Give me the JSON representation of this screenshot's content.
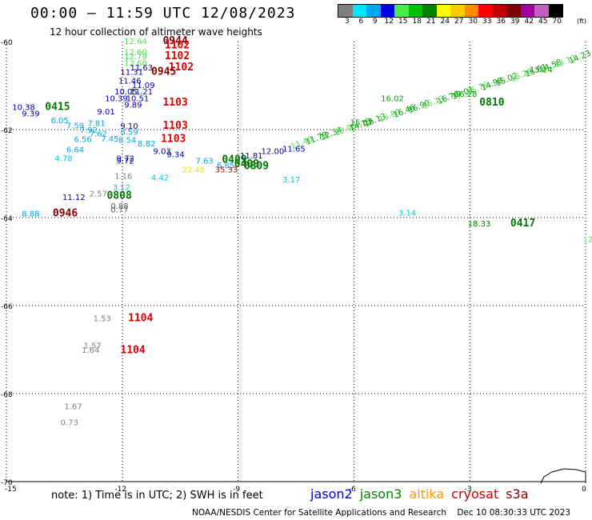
{
  "title": "00:00 — 11:59 UTC 12/08/2023",
  "subtitle": "12 hour collection of altimeter wave heights",
  "color_scale": {
    "unit": "(ft)",
    "swatches": [
      "#808080",
      "#00e5ff",
      "#00a8f0",
      "#0000dd",
      "#44ee44",
      "#00c000",
      "#008000",
      "#ffff00",
      "#ffcc00",
      "#ff8c00",
      "#ff0000",
      "#c00000",
      "#800000",
      "#a000a0",
      "#c060c0",
      "#000000"
    ],
    "labels": [
      "3",
      "6",
      "9",
      "12",
      "15",
      "18",
      "21",
      "24",
      "27",
      "30",
      "33",
      "36",
      "39",
      "42",
      "45",
      "70"
    ]
  },
  "axes": {
    "x_ticks": [
      "-15",
      "-12",
      "-9",
      "-6",
      "-3",
      "0"
    ],
    "y_ticks": [
      "-60",
      "-62",
      "-64",
      "-66",
      "-68",
      "-70"
    ]
  },
  "observations": [
    {
      "t": "12.64",
      "lon": -11.95,
      "lat": -60.05,
      "c": "#55dd55"
    },
    {
      "t": "0944",
      "lon": -10.95,
      "lat": -60.05,
      "c": "#880000",
      "time": true
    },
    {
      "t": "1102",
      "lon": -10.9,
      "lat": -60.15,
      "c": "#dd0000",
      "time": true
    },
    {
      "t": "12.60",
      "lon": -11.95,
      "lat": -60.3,
      "c": "#55dd55"
    },
    {
      "t": "12.79",
      "lon": -11.95,
      "lat": -60.4,
      "c": "#55dd55"
    },
    {
      "t": "1102",
      "lon": -10.9,
      "lat": -60.4,
      "c": "#dd0000",
      "time": true
    },
    {
      "t": "12.60",
      "lon": -11.95,
      "lat": -60.55,
      "c": "#55dd55"
    },
    {
      "t": "11.63",
      "lon": -11.8,
      "lat": -60.65,
      "c": "#0000aa"
    },
    {
      "t": "1102",
      "lon": -10.8,
      "lat": -60.65,
      "c": "#dd0000",
      "time": true
    },
    {
      "t": "11.31",
      "lon": -12.05,
      "lat": -60.75,
      "c": "#0000aa"
    },
    {
      "t": "0945",
      "lon": -11.25,
      "lat": -60.75,
      "c": "#880000",
      "time": true
    },
    {
      "t": "11.46",
      "lon": -12.1,
      "lat": -60.95,
      "c": "#0000aa"
    },
    {
      "t": "11.09",
      "lon": -11.75,
      "lat": -61.05,
      "c": "#0000aa"
    },
    {
      "t": "10.05",
      "lon": -12.2,
      "lat": -61.2,
      "c": "#0000aa"
    },
    {
      "t": "11.21",
      "lon": -11.8,
      "lat": -61.2,
      "c": "#0000aa"
    },
    {
      "t": "10.39",
      "lon": -12.45,
      "lat": -61.35,
      "c": "#0000aa"
    },
    {
      "t": "10.51",
      "lon": -11.9,
      "lat": -61.35,
      "c": "#0000aa"
    },
    {
      "t": "1103",
      "lon": -10.95,
      "lat": -61.45,
      "c": "#dd0000",
      "time": true
    },
    {
      "t": "9.89",
      "lon": -11.95,
      "lat": -61.5,
      "c": "#0000aa"
    },
    {
      "t": "9.01",
      "lon": -12.65,
      "lat": -61.65,
      "c": "#0000aa"
    },
    {
      "t": "10.38",
      "lon": -14.85,
      "lat": -61.55,
      "c": "#0000aa"
    },
    {
      "t": "0415",
      "lon": -14.0,
      "lat": -61.55,
      "c": "#007700",
      "time": true
    },
    {
      "t": "9.39",
      "lon": -14.6,
      "lat": -61.7,
      "c": "#0000aa"
    },
    {
      "t": "6.05",
      "lon": -13.85,
      "lat": -61.85,
      "c": "#00a8e0"
    },
    {
      "t": "7.59",
      "lon": -13.45,
      "lat": -61.97,
      "c": "#00a8e0"
    },
    {
      "t": "7.81",
      "lon": -12.9,
      "lat": -61.92,
      "c": "#00a8e0"
    },
    {
      "t": "9.10",
      "lon": -12.05,
      "lat": -61.98,
      "c": "#0000aa"
    },
    {
      "t": "1103",
      "lon": -10.95,
      "lat": -61.98,
      "c": "#dd0000",
      "time": true
    },
    {
      "t": "7.92",
      "lon": -13.1,
      "lat": -62.07,
      "c": "#00a8e0"
    },
    {
      "t": "7.62",
      "lon": -12.85,
      "lat": -62.15,
      "c": "#00a8e0"
    },
    {
      "t": "8.59",
      "lon": -12.05,
      "lat": -62.12,
      "c": "#00a8e0"
    },
    {
      "t": "6.56",
      "lon": -13.25,
      "lat": -62.28,
      "c": "#00a8e0"
    },
    {
      "t": "7.45",
      "lon": -12.55,
      "lat": -62.27,
      "c": "#00a8e0"
    },
    {
      "t": "8.54",
      "lon": -12.1,
      "lat": -62.3,
      "c": "#00a8e0"
    },
    {
      "t": "1103",
      "lon": -11.0,
      "lat": -62.28,
      "c": "#dd0000",
      "time": true
    },
    {
      "t": "8.82",
      "lon": -11.6,
      "lat": -62.38,
      "c": "#00a8e0"
    },
    {
      "t": "6.64",
      "lon": -13.45,
      "lat": -62.52,
      "c": "#00a8e0"
    },
    {
      "t": "9.03",
      "lon": -11.2,
      "lat": -62.55,
      "c": "#0000aa"
    },
    {
      "t": "9.34",
      "lon": -10.85,
      "lat": -62.63,
      "c": "#0000aa"
    },
    {
      "t": "4.78",
      "lon": -13.75,
      "lat": -62.72,
      "c": "#00c8e8"
    },
    {
      "t": "9.72",
      "lon": -12.15,
      "lat": -62.72,
      "c": "#0000aa"
    },
    {
      "t": "9.72",
      "lon": -12.15,
      "lat": -62.77,
      "c": "#0000aa"
    },
    {
      "t": "7.63",
      "lon": -10.1,
      "lat": -62.77,
      "c": "#00a8e0"
    },
    {
      "t": "0409",
      "lon": -9.42,
      "lat": -62.75,
      "c": "#007700",
      "time": true
    },
    {
      "t": "11.81",
      "lon": -8.95,
      "lat": -62.65,
      "c": "#0000aa"
    },
    {
      "t": "12.00",
      "lon": -8.4,
      "lat": -62.55,
      "c": "#0000aa"
    },
    {
      "t": "11.65",
      "lon": -7.85,
      "lat": -62.5,
      "c": "#0000aa"
    },
    {
      "t": "6.85",
      "lon": -9.55,
      "lat": -62.87,
      "c": "#00a8e0"
    },
    {
      "t": "0409",
      "lon": -9.1,
      "lat": -62.85,
      "c": "#007700",
      "time": true
    },
    {
      "t": "0809",
      "lon": -8.85,
      "lat": -62.9,
      "c": "#007700",
      "time": true
    },
    {
      "t": "22.48",
      "lon": -10.45,
      "lat": -62.97,
      "c": "#e8e800"
    },
    {
      "t": "35.33",
      "lon": -9.6,
      "lat": -62.97,
      "c": "#c00000"
    },
    {
      "t": "4.42",
      "lon": -11.25,
      "lat": -63.15,
      "c": "#00c8e8"
    },
    {
      "t": "3.17",
      "lon": -7.85,
      "lat": -63.2,
      "c": "#00c8e8"
    },
    {
      "t": "1.16",
      "lon": -12.2,
      "lat": -63.12,
      "c": "#808080"
    },
    {
      "t": "3.12",
      "lon": -12.25,
      "lat": -63.37,
      "c": "#00c8e8"
    },
    {
      "t": "11.12",
      "lon": -13.55,
      "lat": -63.6,
      "c": "#0000aa"
    },
    {
      "t": "2.57",
      "lon": -12.85,
      "lat": -63.52,
      "c": "#808080"
    },
    {
      "t": "0808",
      "lon": -12.4,
      "lat": -63.57,
      "c": "#007700",
      "time": true
    },
    {
      "t": "0.88",
      "lon": -12.3,
      "lat": -63.8,
      "c": "#606060"
    },
    {
      "t": "0.77",
      "lon": -12.3,
      "lat": -63.88,
      "c": "#606060"
    },
    {
      "t": "8.88",
      "lon": -14.6,
      "lat": -63.97,
      "c": "#00a8e0"
    },
    {
      "t": "0946",
      "lon": -13.8,
      "lat": -63.97,
      "c": "#880000",
      "time": true
    },
    {
      "t": "3.14",
      "lon": -4.85,
      "lat": -63.95,
      "c": "#00c8e8"
    },
    {
      "t": "18.33",
      "lon": -3.05,
      "lat": -64.2,
      "c": "#007700"
    },
    {
      "t": "0417",
      "lon": -1.95,
      "lat": -64.2,
      "c": "#007700",
      "time": true
    },
    {
      "t": "12.91",
      "lon": -0.07,
      "lat": -64.55,
      "c": "#55dd55"
    },
    {
      "t": "1.53",
      "lon": -12.75,
      "lat": -66.35,
      "c": "#808080"
    },
    {
      "t": "1104",
      "lon": -11.85,
      "lat": -66.35,
      "c": "#dd0000",
      "time": true
    },
    {
      "t": "1.57",
      "lon": -13.0,
      "lat": -66.97,
      "c": "#808080"
    },
    {
      "t": "1.64",
      "lon": -13.05,
      "lat": -67.07,
      "c": "#808080"
    },
    {
      "t": "1104",
      "lon": -12.05,
      "lat": -67.08,
      "c": "#dd0000",
      "time": true
    },
    {
      "t": "1.67",
      "lon": -13.5,
      "lat": -68.35,
      "c": "#808080"
    },
    {
      "t": "0.73",
      "lon": -13.6,
      "lat": -68.72,
      "c": "#808080"
    },
    {
      "t": "16.02",
      "lon": -5.3,
      "lat": -61.35,
      "c": "#00a000"
    },
    {
      "t": "16.28",
      "lon": -3.4,
      "lat": -61.25,
      "c": "#00a000"
    },
    {
      "t": "0810",
      "lon": -2.75,
      "lat": -61.45,
      "c": "#007700",
      "time": true
    },
    {
      "t": "15.06",
      "lon": 0.15,
      "lat": -60.15,
      "c": "#00a000"
    },
    {
      "t": "15.14",
      "lon": -1.45,
      "lat": -60.7,
      "c": "#00a000"
    },
    {
      "t": "15.07",
      "lon": -6.1,
      "lat": -61.9,
      "c": "#00a000"
    }
  ],
  "note": "note:  1) Time is in UTC;  2) SWH is in feet",
  "legend": [
    {
      "name": "jason2",
      "color": "#0000cc"
    },
    {
      "name": "jason3",
      "color": "#008800"
    },
    {
      "name": "altika",
      "color": "#ff9900"
    },
    {
      "name": "cryosat",
      "color": "#cc0000"
    },
    {
      "name": "s3a",
      "color": "#880000"
    }
  ],
  "credit": "NOAA/NESDIS Center for Satellite Applications and Research    Dec 10 08:30:33 UTC 2023"
}
